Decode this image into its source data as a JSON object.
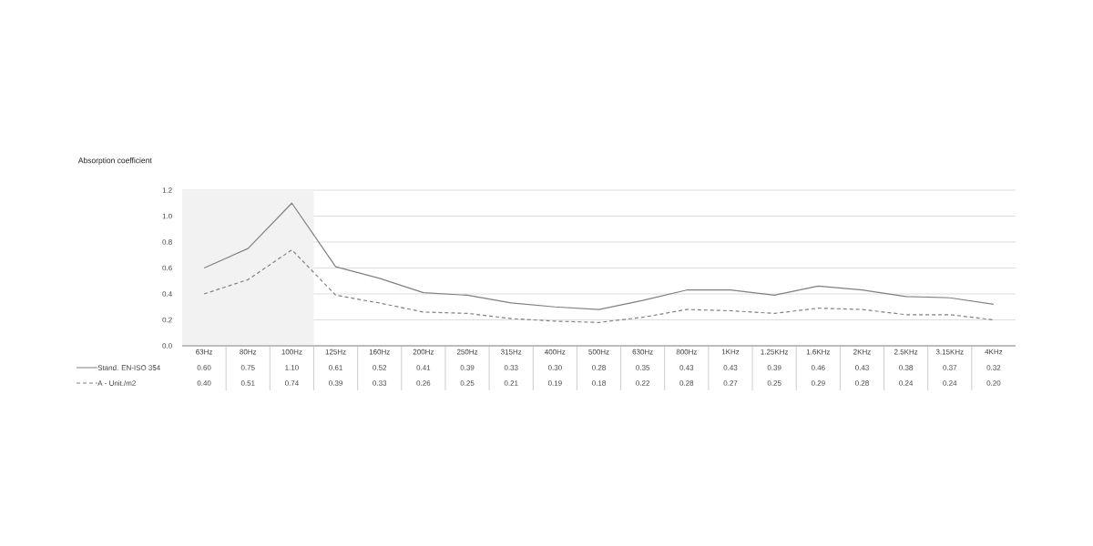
{
  "chart_data": {
    "type": "line",
    "title": "Absorption coefficient",
    "categories": [
      "63Hz",
      "80Hz",
      "100Hz",
      "125Hz",
      "160Hz",
      "200Hz",
      "250Hz",
      "315Hz",
      "400Hz",
      "500Hz",
      "630Hz",
      "800Hz",
      "1KHz",
      "1.25KHz",
      "1.6KHz",
      "2KHz",
      "2.5KHz",
      "3.15KHz",
      "4KHz"
    ],
    "series": [
      {
        "name": "Stand. EN-ISO 354",
        "color": "#808080",
        "line_style": "solid",
        "values": [
          0.6,
          0.75,
          1.1,
          0.61,
          0.52,
          0.41,
          0.39,
          0.33,
          0.3,
          0.28,
          0.35,
          0.43,
          0.43,
          0.39,
          0.46,
          0.43,
          0.38,
          0.37,
          0.32
        ],
        "value_labels": [
          "0.60",
          "0.75",
          "1.10",
          "0.61",
          "0.52",
          "0.41",
          "0.39",
          "0.33",
          "0.30",
          "0.28",
          "0.35",
          "0.43",
          "0.43",
          "0.39",
          "0.46",
          "0.43",
          "0.38",
          "0.37",
          "0.32"
        ]
      },
      {
        "name": "A - Unit./m2",
        "color": "#808080",
        "line_style": "dashed",
        "values": [
          0.4,
          0.51,
          0.74,
          0.39,
          0.33,
          0.26,
          0.25,
          0.21,
          0.19,
          0.18,
          0.22,
          0.28,
          0.27,
          0.25,
          0.29,
          0.28,
          0.24,
          0.24,
          0.2
        ],
        "value_labels": [
          "0.40",
          "0.51",
          "0.74",
          "0.39",
          "0.33",
          "0.26",
          "0.25",
          "0.21",
          "0.19",
          "0.18",
          "0.22",
          "0.28",
          "0.27",
          "0.25",
          "0.29",
          "0.28",
          "0.24",
          "0.24",
          "0.20"
        ]
      }
    ],
    "ylim": [
      0,
      1.2
    ],
    "yticks": [
      {
        "value": 0,
        "label": "0.0"
      },
      0.2,
      0.4,
      0.6,
      0.8,
      {
        "value": 1,
        "label": "1.0"
      },
      1.2
    ],
    "bands": [
      {
        "axis": "x",
        "from": "63Hz",
        "to": "100Hz",
        "color": "#f2f2f2"
      }
    ],
    "grid": "y",
    "legend": "bottom left",
    "marker": "none"
  }
}
